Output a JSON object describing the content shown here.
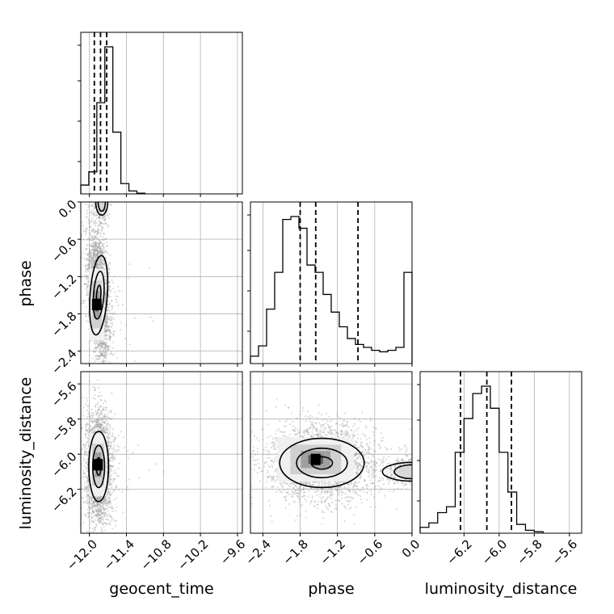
{
  "chart_data": {
    "type": "corner",
    "parameters": [
      "geocent_time",
      "phase",
      "luminosity_distance"
    ],
    "x_axis_labels": [
      "geocent_time",
      "phase",
      "luminosity_distance"
    ],
    "y_axis_labels": [
      "",
      "phase",
      "luminosity_distance"
    ],
    "grid": true,
    "ranges": {
      "geocent_time": [
        -12.14,
        -9.52
      ],
      "phase": [
        -2.6,
        0.0
      ],
      "luminosity_distance": [
        -6.45,
        -5.53
      ]
    },
    "ticks": {
      "geocent_time": {
        "values": [
          -12.0,
          -11.4,
          -10.8,
          -10.2,
          -9.6
        ],
        "labels": [
          "−12.0",
          "−11.4",
          "−10.8",
          "−10.2",
          "−9.6"
        ]
      },
      "phase": {
        "values": [
          -2.4,
          -1.8,
          -1.2,
          -0.6,
          0.0
        ],
        "labels": [
          "−2.4",
          "−1.8",
          "−1.2",
          "−0.6",
          "0.0"
        ]
      },
      "luminosity_distance": {
        "values": [
          -6.2,
          -6.0,
          -5.8,
          -5.6
        ],
        "labels": [
          "−6.2",
          "−6.0",
          "−5.8",
          "−5.6"
        ]
      }
    },
    "quantiles": {
      "geocent_time": [
        -11.92,
        -11.82,
        -11.72
      ],
      "phase": [
        -1.8,
        -1.55,
        -0.87
      ],
      "luminosity_distance": [
        -6.22,
        -6.07,
        -5.93
      ]
    },
    "histograms": {
      "geocent_time": {
        "edges": [
          -12.14,
          -12.01,
          -11.88,
          -11.75,
          -11.62,
          -11.49,
          -11.36,
          -11.23,
          -11.1
        ],
        "counts": [
          0.06,
          0.15,
          0.62,
          1.0,
          0.42,
          0.07,
          0.02,
          0.005
        ]
      },
      "phase": {
        "edges": [
          -2.6,
          -2.47,
          -2.34,
          -2.21,
          -2.08,
          -1.95,
          -1.82,
          -1.69,
          -1.56,
          -1.43,
          -1.3,
          -1.17,
          -1.04,
          -0.91,
          -0.78,
          -0.65,
          -0.52,
          -0.39,
          -0.26,
          -0.13,
          0.0
        ],
        "counts": [
          0.05,
          0.12,
          0.37,
          0.62,
          0.98,
          1.0,
          0.92,
          0.67,
          0.62,
          0.47,
          0.35,
          0.25,
          0.17,
          0.13,
          0.11,
          0.09,
          0.08,
          0.09,
          0.11,
          0.62
        ]
      },
      "luminosity_distance": {
        "edges": [
          -6.45,
          -6.4,
          -6.35,
          -6.3,
          -6.25,
          -6.2,
          -6.15,
          -6.1,
          -6.05,
          -6.0,
          -5.95,
          -5.9,
          -5.85,
          -5.8,
          -5.75
        ],
        "counts": [
          0.04,
          0.07,
          0.14,
          0.18,
          0.55,
          0.78,
          0.95,
          1.0,
          0.85,
          0.55,
          0.28,
          0.06,
          0.02,
          0.01
        ]
      }
    },
    "joint": {
      "phase_vs_geocent_time": {
        "center": [
          -11.85,
          -1.5
        ],
        "sigma": [
          0.07,
          0.32
        ],
        "tilt": -0.4,
        "peak": [
          -11.88,
          -1.65
        ],
        "secondary_mode": [
          -11.8,
          0.0
        ],
        "levels": [
          0.5,
          1.2,
          2.0
        ]
      },
      "luminosity_distance_vs_geocent_time": {
        "center": [
          -11.85,
          -6.07
        ],
        "sigma": [
          0.08,
          0.1
        ],
        "tilt": 0.0,
        "peak": [
          -11.86,
          -6.06
        ],
        "levels": [
          0.5,
          1.2,
          2.0
        ]
      },
      "luminosity_distance_vs_phase": {
        "center": [
          -1.45,
          -6.05
        ],
        "sigma": [
          0.34,
          0.07
        ],
        "tilt": 0.0,
        "peak": [
          -1.55,
          -6.03
        ],
        "secondary_mode": [
          0.0,
          -6.1
        ],
        "levels": [
          0.5,
          1.2,
          2.0
        ]
      }
    }
  }
}
